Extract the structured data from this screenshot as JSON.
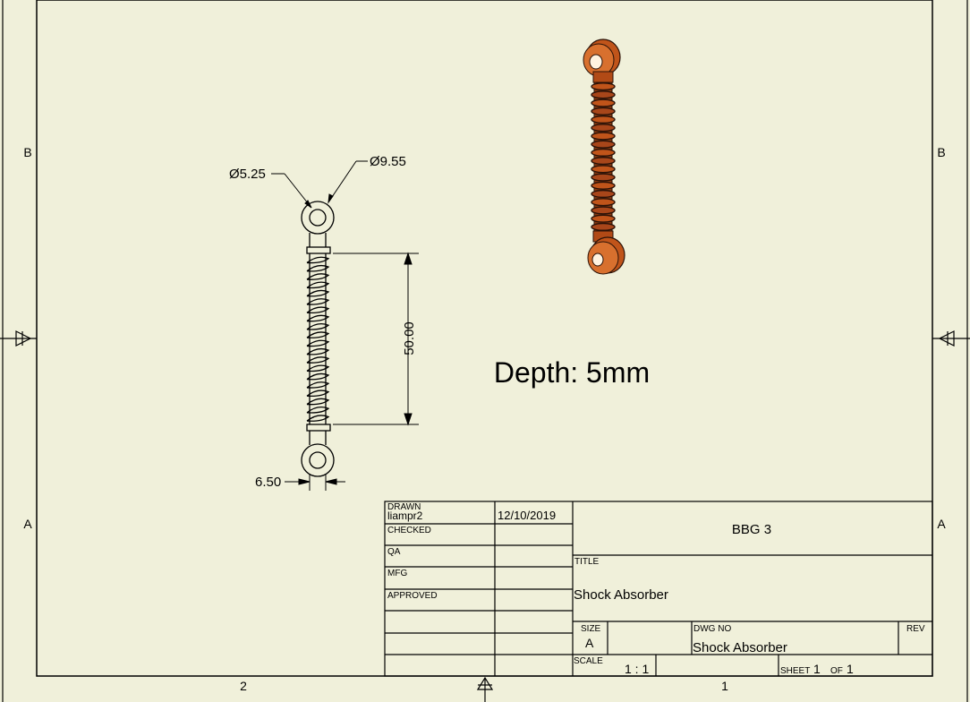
{
  "zones": {
    "left": [
      "B",
      "A"
    ],
    "right": [
      "B",
      "A"
    ],
    "bottom": [
      "2",
      "1"
    ]
  },
  "dimensions": {
    "hole_diameter": "Ø5.25",
    "eye_diameter": "Ø9.55",
    "spring_length": "50.00",
    "rod_width": "6.50"
  },
  "note": "Depth: 5mm",
  "title_block": {
    "drawn_label": "DRAWN",
    "drawn_by": "liampr2",
    "drawn_date": "12/10/2019",
    "checked_label": "CHECKED",
    "qa_label": "QA",
    "mfg_label": "MFG",
    "approved_label": "APPROVED",
    "company": "BBG 3",
    "title_label": "TITLE",
    "title": "Shock Absorber",
    "size_label": "SIZE",
    "size": "A",
    "dwg_no_label": "DWG NO",
    "dwg_no": "Shock Absorber",
    "rev_label": "REV",
    "scale_label": "SCALE",
    "scale": "1 : 1",
    "sheet_label": "SHEET",
    "sheet_num": "1",
    "of_label": "OF",
    "sheet_total": "1"
  },
  "colors": {
    "paper": "#f0f0da",
    "part_orange": "#c0541a",
    "part_dark": "#2a1208"
  }
}
